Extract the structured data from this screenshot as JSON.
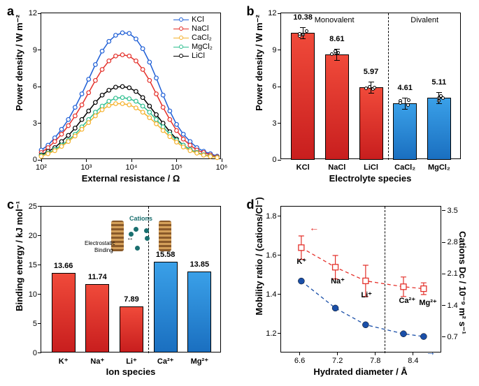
{
  "panelA": {
    "label": "a",
    "xlabel": "External resistance / Ω",
    "ylabel": "Power density / W m⁻²",
    "xticks": [
      "10²",
      "10³",
      "10⁴",
      "10⁵",
      "10⁶"
    ],
    "yticks": [
      0,
      3,
      6,
      9,
      12
    ],
    "ylim": [
      0,
      12
    ],
    "colors": {
      "KCl": "#1f5fd6",
      "NaCl": "#e4312b",
      "CaCl2": "#f5b22e",
      "MgCl2": "#2fbf8f",
      "LiCl": "#000000"
    },
    "legend": [
      "KCl",
      "NaCl",
      "CaCl₂",
      "MgCl₂",
      "LiCl"
    ],
    "legendKeys": [
      "KCl",
      "NaCl",
      "CaCl2",
      "MgCl2",
      "LiCl"
    ],
    "series": {
      "KCl": [
        [
          2.0,
          0.8
        ],
        [
          2.15,
          1.2
        ],
        [
          2.3,
          1.8
        ],
        [
          2.45,
          2.5
        ],
        [
          2.6,
          3.3
        ],
        [
          2.75,
          4.3
        ],
        [
          2.9,
          5.4
        ],
        [
          3.05,
          6.6
        ],
        [
          3.2,
          7.8
        ],
        [
          3.35,
          8.9
        ],
        [
          3.5,
          9.7
        ],
        [
          3.65,
          10.2
        ],
        [
          3.8,
          10.4
        ],
        [
          3.95,
          10.35
        ],
        [
          4.1,
          9.9
        ],
        [
          4.25,
          9.1
        ],
        [
          4.4,
          8.0
        ],
        [
          4.55,
          6.7
        ],
        [
          4.7,
          5.3
        ],
        [
          4.85,
          4.0
        ],
        [
          5.0,
          2.9
        ],
        [
          5.15,
          2.1
        ],
        [
          5.3,
          1.5
        ],
        [
          5.45,
          1.0
        ],
        [
          5.6,
          0.7
        ],
        [
          5.75,
          0.5
        ],
        [
          5.9,
          0.3
        ]
      ],
      "NaCl": [
        [
          2.0,
          0.6
        ],
        [
          2.15,
          1.0
        ],
        [
          2.3,
          1.5
        ],
        [
          2.45,
          2.1
        ],
        [
          2.6,
          2.8
        ],
        [
          2.75,
          3.6
        ],
        [
          2.9,
          4.5
        ],
        [
          3.05,
          5.5
        ],
        [
          3.2,
          6.5
        ],
        [
          3.35,
          7.4
        ],
        [
          3.5,
          8.1
        ],
        [
          3.65,
          8.5
        ],
        [
          3.8,
          8.6
        ],
        [
          3.95,
          8.5
        ],
        [
          4.1,
          8.1
        ],
        [
          4.25,
          7.4
        ],
        [
          4.4,
          6.5
        ],
        [
          4.55,
          5.4
        ],
        [
          4.7,
          4.3
        ],
        [
          4.85,
          3.3
        ],
        [
          5.0,
          2.4
        ],
        [
          5.15,
          1.7
        ],
        [
          5.3,
          1.2
        ],
        [
          5.45,
          0.8
        ],
        [
          5.6,
          0.6
        ],
        [
          5.75,
          0.4
        ],
        [
          5.9,
          0.25
        ]
      ],
      "LiCl": [
        [
          2.0,
          0.4
        ],
        [
          2.15,
          0.7
        ],
        [
          2.3,
          1.0
        ],
        [
          2.45,
          1.5
        ],
        [
          2.6,
          2.0
        ],
        [
          2.75,
          2.6
        ],
        [
          2.9,
          3.3
        ],
        [
          3.05,
          4.0
        ],
        [
          3.2,
          4.7
        ],
        [
          3.35,
          5.3
        ],
        [
          3.5,
          5.7
        ],
        [
          3.65,
          5.95
        ],
        [
          3.8,
          6.0
        ],
        [
          3.95,
          5.9
        ],
        [
          4.1,
          5.6
        ],
        [
          4.25,
          5.1
        ],
        [
          4.4,
          4.4
        ],
        [
          4.55,
          3.7
        ],
        [
          4.7,
          3.0
        ],
        [
          4.85,
          2.3
        ],
        [
          5.0,
          1.7
        ],
        [
          5.15,
          1.2
        ],
        [
          5.3,
          0.85
        ],
        [
          5.45,
          0.6
        ],
        [
          5.6,
          0.4
        ],
        [
          5.75,
          0.28
        ],
        [
          5.9,
          0.2
        ]
      ],
      "MgCl2": [
        [
          2.0,
          0.35
        ],
        [
          2.15,
          0.55
        ],
        [
          2.3,
          0.85
        ],
        [
          2.45,
          1.2
        ],
        [
          2.6,
          1.6
        ],
        [
          2.75,
          2.1
        ],
        [
          2.9,
          2.7
        ],
        [
          3.05,
          3.3
        ],
        [
          3.2,
          3.9
        ],
        [
          3.35,
          4.4
        ],
        [
          3.5,
          4.8
        ],
        [
          3.65,
          5.05
        ],
        [
          3.8,
          5.1
        ],
        [
          3.95,
          5.0
        ],
        [
          4.1,
          4.8
        ],
        [
          4.25,
          4.4
        ],
        [
          4.4,
          3.9
        ],
        [
          4.55,
          3.3
        ],
        [
          4.7,
          2.7
        ],
        [
          4.85,
          2.1
        ],
        [
          5.0,
          1.6
        ],
        [
          5.15,
          1.2
        ],
        [
          5.3,
          0.85
        ],
        [
          5.45,
          0.6
        ],
        [
          5.6,
          0.42
        ],
        [
          5.75,
          0.3
        ],
        [
          5.9,
          0.2
        ]
      ],
      "CaCl2": [
        [
          2.0,
          0.28
        ],
        [
          2.15,
          0.5
        ],
        [
          2.3,
          0.75
        ],
        [
          2.45,
          1.1
        ],
        [
          2.6,
          1.5
        ],
        [
          2.75,
          1.95
        ],
        [
          2.9,
          2.5
        ],
        [
          3.05,
          3.05
        ],
        [
          3.2,
          3.6
        ],
        [
          3.35,
          4.1
        ],
        [
          3.5,
          4.45
        ],
        [
          3.65,
          4.6
        ],
        [
          3.8,
          4.6
        ],
        [
          3.95,
          4.5
        ],
        [
          4.1,
          4.25
        ],
        [
          4.25,
          3.9
        ],
        [
          4.4,
          3.45
        ],
        [
          4.55,
          2.95
        ],
        [
          4.7,
          2.4
        ],
        [
          4.85,
          1.9
        ],
        [
          5.0,
          1.45
        ],
        [
          5.15,
          1.05
        ],
        [
          5.3,
          0.75
        ],
        [
          5.45,
          0.55
        ],
        [
          5.6,
          0.38
        ],
        [
          5.75,
          0.27
        ],
        [
          5.9,
          0.18
        ]
      ]
    }
  },
  "panelB": {
    "label": "b",
    "xlabel": "Electrolyte species",
    "ylabel": "Power density / W m⁻²",
    "yticks": [
      0,
      3,
      6,
      9,
      12
    ],
    "ylim": [
      0,
      12
    ],
    "section1": "Monovalent",
    "section2": "Divalent",
    "bars": [
      {
        "cat": "KCl",
        "val": 10.38,
        "col1": "#f04a3a",
        "col2": "#c81e1e",
        "group": "mono"
      },
      {
        "cat": "NaCl",
        "val": 8.61,
        "col1": "#f04a3a",
        "col2": "#c81e1e",
        "group": "mono"
      },
      {
        "cat": "LiCl",
        "val": 5.97,
        "col1": "#f04a3a",
        "col2": "#c81e1e",
        "group": "mono"
      },
      {
        "cat": "CaCl₂",
        "val": 4.61,
        "col1": "#3aa0e8",
        "col2": "#1a6fc0",
        "group": "di"
      },
      {
        "cat": "MgCl₂",
        "val": 5.11,
        "col1": "#3aa0e8",
        "col2": "#1a6fc0",
        "group": "di"
      }
    ]
  },
  "panelC": {
    "label": "c",
    "xlabel": "Ion species",
    "ylabel": "Binding energy / kJ mol⁻¹",
    "yticks": [
      0,
      5,
      10,
      15,
      20,
      25
    ],
    "ylim": [
      0,
      25
    ],
    "insetLabel1": "Cations",
    "insetLabel2": "Electrostatic",
    "insetLabel3": "Binding",
    "bars": [
      {
        "cat": "K⁺",
        "val": 13.66,
        "col1": "#f04a3a",
        "col2": "#c81e1e"
      },
      {
        "cat": "Na⁺",
        "val": 11.74,
        "col1": "#f04a3a",
        "col2": "#c81e1e"
      },
      {
        "cat": "Li⁺",
        "val": 7.89,
        "col1": "#f04a3a",
        "col2": "#c81e1e"
      },
      {
        "cat": "Ca²⁺",
        "val": 15.58,
        "col1": "#3aa0e8",
        "col2": "#1a6fc0"
      },
      {
        "cat": "Mg²⁺",
        "val": 13.85,
        "col1": "#3aa0e8",
        "col2": "#1a6fc0"
      }
    ]
  },
  "panelD": {
    "label": "d",
    "xlabel": "Hydrated diameter / Å",
    "ylabel": "Mobility ratio / (cations/Cl⁻)",
    "ylabel2": "Cations Dc / 10⁻⁹ m² s⁻¹",
    "xticks": [
      6.6,
      7.2,
      7.8,
      8.4
    ],
    "xlim": [
      6.3,
      8.85
    ],
    "yticks": [
      1.2,
      1.4,
      1.6,
      1.8
    ],
    "ylim": [
      1.1,
      1.85
    ],
    "y2ticks": [
      0.7,
      1.4,
      2.1,
      2.8,
      3.5
    ],
    "y2lim": [
      0.35,
      3.6
    ],
    "ions": [
      "K⁺",
      "Na⁺",
      "Li⁺",
      "Ca²⁺",
      "Mg²⁺"
    ],
    "red": {
      "color": "#e4312b",
      "pts": [
        [
          6.62,
          1.64,
          0.06
        ],
        [
          7.16,
          1.54,
          0.06
        ],
        [
          7.64,
          1.47,
          0.08
        ],
        [
          8.24,
          1.44,
          0.05
        ],
        [
          8.56,
          1.43,
          0.03
        ]
      ]
    },
    "blue": {
      "color": "#1a4fa8",
      "pts": [
        [
          6.62,
          1.95
        ],
        [
          7.16,
          1.35
        ],
        [
          7.64,
          0.98
        ],
        [
          8.24,
          0.78
        ],
        [
          8.56,
          0.72
        ]
      ]
    }
  }
}
